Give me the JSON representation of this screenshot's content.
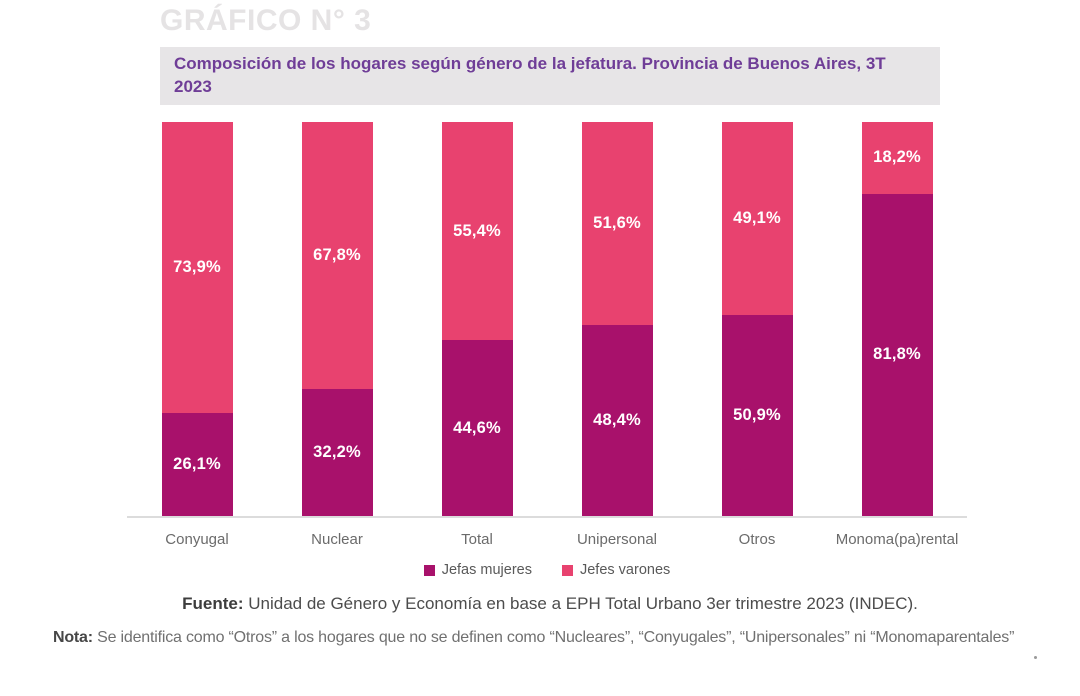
{
  "page": {
    "title": "GRÁFICO N° 3"
  },
  "chart_data": {
    "type": "bar",
    "stacked": true,
    "title": "Composición de los hogares según género de la jefatura. Provincia de Buenos Aires, 3T 2023",
    "title_lines": [
      "Composición de los hogares según género de la jefatura. Provincia de Buenos Aires, 3T",
      "2023"
    ],
    "categories": [
      "Conyugal",
      "Nuclear",
      "Total",
      "Unipersonal",
      "Otros",
      "Monoma(pa)rental"
    ],
    "series": [
      {
        "name": "Jefas mujeres",
        "color": "#A8116B",
        "values": [
          26.1,
          32.2,
          44.6,
          48.4,
          50.9,
          81.8
        ],
        "labels": [
          "26,1%",
          "32,2%",
          "44,6%",
          "48,4%",
          "50,9%",
          "81,8%"
        ]
      },
      {
        "name": "Jefes varones",
        "color": "#E8426F",
        "values": [
          73.9,
          67.8,
          55.4,
          51.6,
          49.1,
          18.2
        ],
        "labels": [
          "73,9%",
          "67,8%",
          "55,4%",
          "51,6%",
          "49,1%",
          "18,2%"
        ]
      }
    ],
    "unit": "%",
    "ylim": [
      0,
      100
    ],
    "grid": false,
    "axes_visible": "x-baseline-only",
    "legend_position": "bottom-center"
  },
  "legend": {
    "items": [
      {
        "label": "Jefas mujeres",
        "color": "#A8116B"
      },
      {
        "label": "Jefes varones",
        "color": "#E8426F"
      }
    ]
  },
  "footer": {
    "fuente_label": "Fuente:",
    "fuente_text": "Unidad de Género y Economía en base a EPH Total Urbano 3er trimestre 2023 (INDEC).",
    "nota_label": "Nota:",
    "nota_text": "Se identifica como “Otros” a los hogares que no se definen como “Nucleares”, “Conyugales”, “Unipersonales” ni “Monomaparentales”"
  },
  "colors": {
    "jefas_mujeres": "#A8116B",
    "jefes_varones": "#E8426F",
    "subtitle_text": "#6F3D97",
    "subtitle_bg": "#E7E5E7",
    "title_gray": "#E5E3E4",
    "axis_line": "#DCDCDC"
  }
}
